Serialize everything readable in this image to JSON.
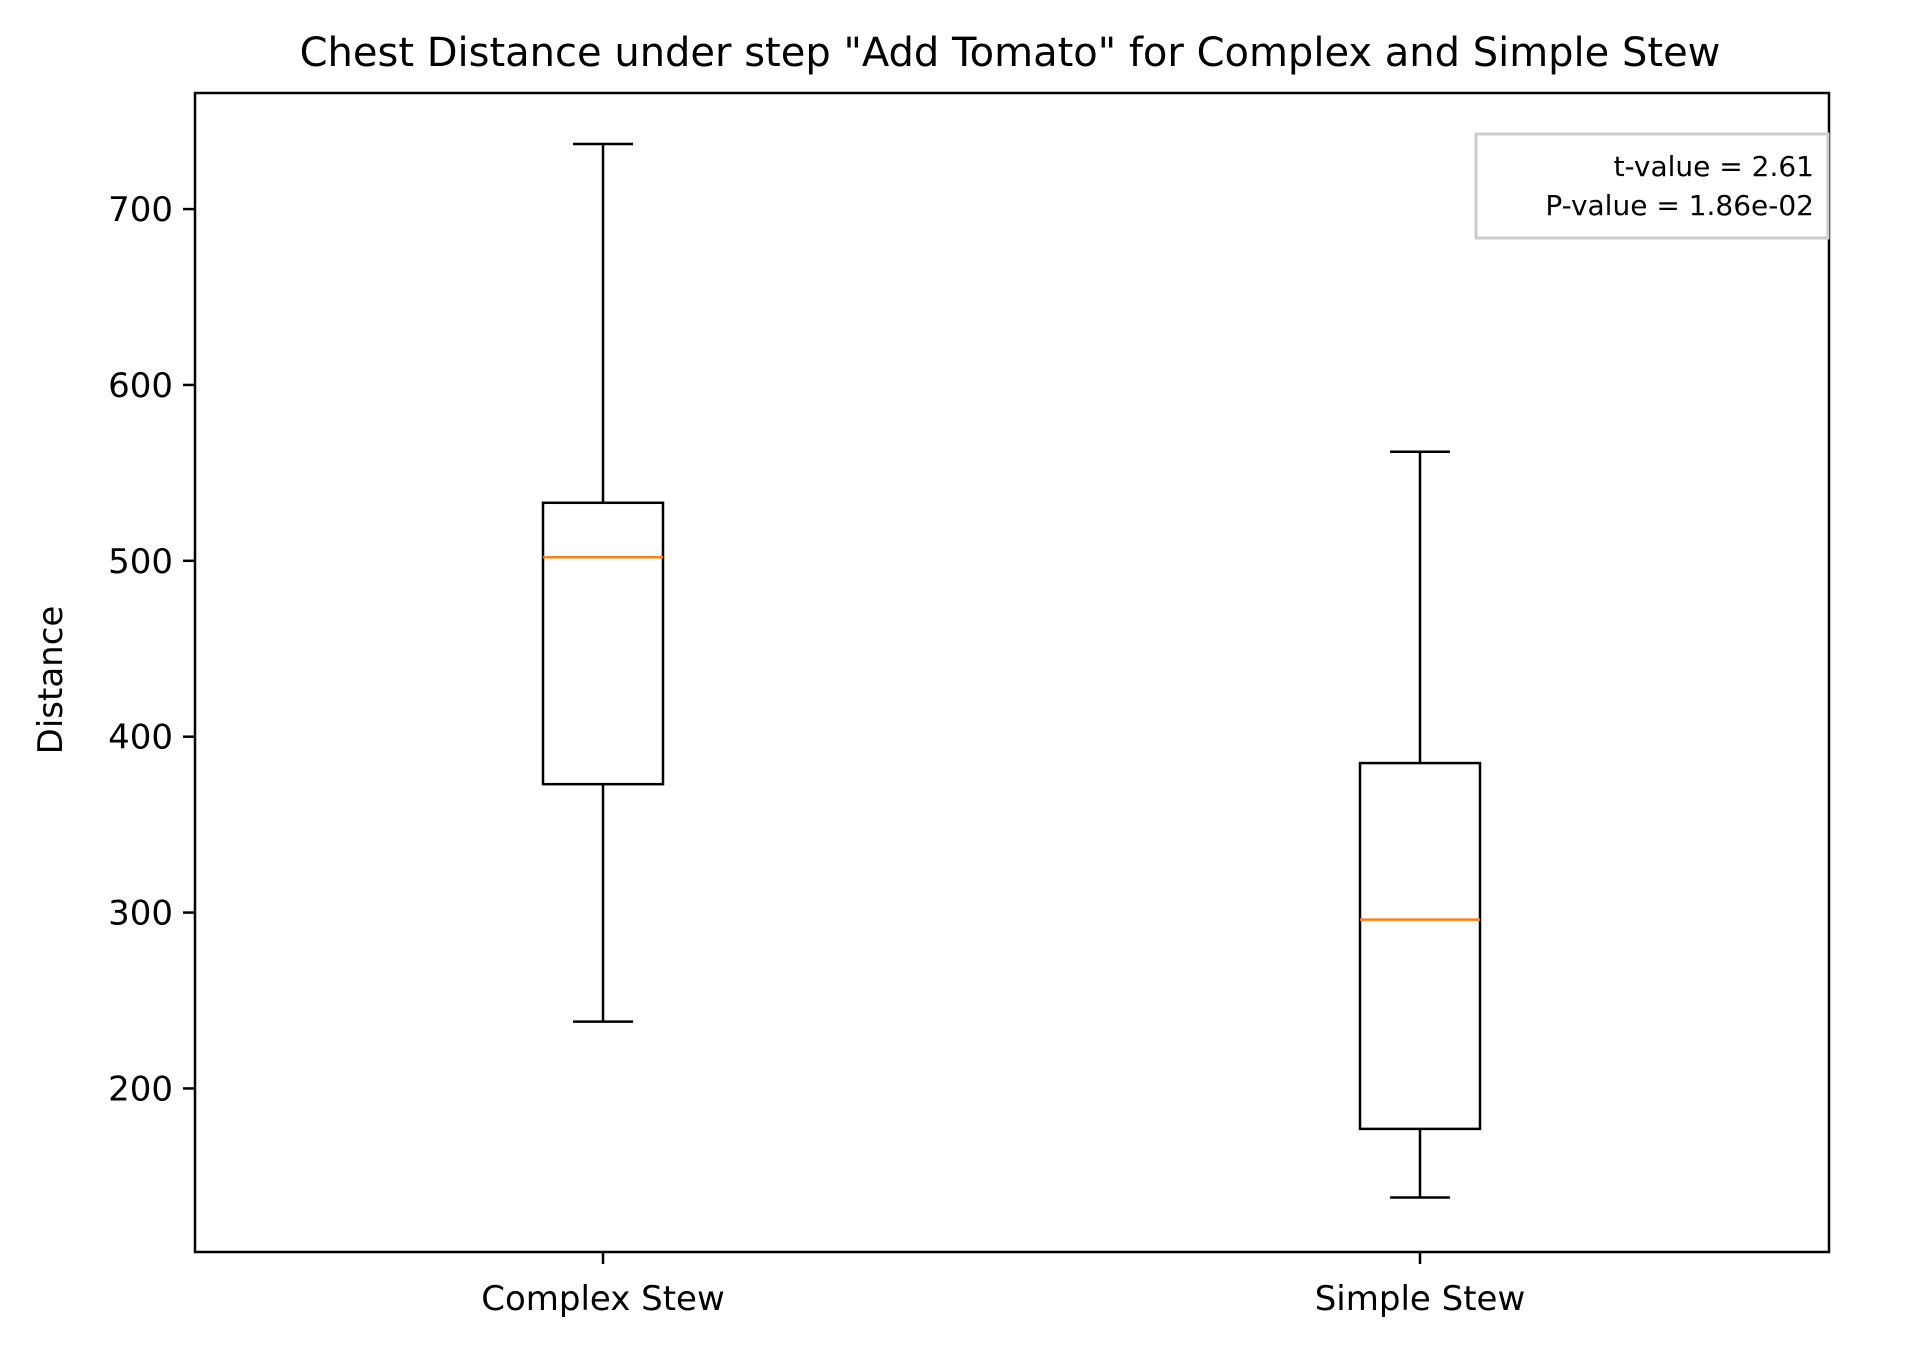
{
  "chart_data": {
    "type": "boxplot",
    "title": "Chest Distance under step \"Add Tomato\" for Complex and Simple Stew",
    "xlabel": "",
    "ylabel": "Distance",
    "ylim": [
      107,
      766
    ],
    "yticks": [
      200,
      300,
      400,
      500,
      600,
      700
    ],
    "categories": [
      "Complex Stew",
      "Simple Stew"
    ],
    "boxes": [
      {
        "name": "Complex Stew",
        "whisker_low": 238,
        "q1": 373,
        "median": 502,
        "q3": 533,
        "whisker_high": 737
      },
      {
        "name": "Simple Stew",
        "whisker_low": 138,
        "q1": 177,
        "median": 296,
        "q3": 385,
        "whisker_high": 562
      }
    ],
    "annotation": {
      "lines": [
        "t-value = 2.61",
        "P-value = 1.86e-02"
      ],
      "placement": "top-right"
    },
    "colors": {
      "median": "#ff7f0e",
      "box": "#000000",
      "annotation_border": "#cccccc"
    },
    "grid": false
  }
}
